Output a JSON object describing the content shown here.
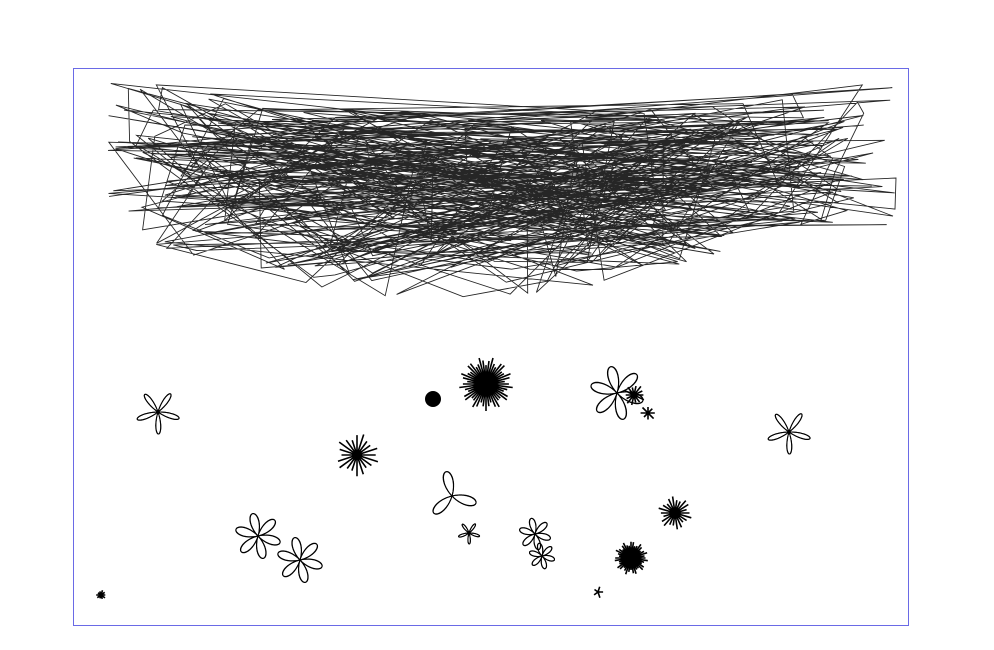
{
  "frame": {
    "border_color": "#6a6ae6"
  },
  "ink": {
    "color": "#000000"
  },
  "scribble": {
    "segment_count": 520,
    "seed": 7
  },
  "flowers": [
    {
      "kind": "looped",
      "petals": 5
    },
    {
      "kind": "dot",
      "petals": 0
    },
    {
      "kind": "burst",
      "petals": 48
    },
    {
      "kind": "looped",
      "petals": 6
    },
    {
      "kind": "burst",
      "petals": 14
    },
    {
      "kind": "burst",
      "petals": 8
    },
    {
      "kind": "looped",
      "petals": 5
    },
    {
      "kind": "burst",
      "petals": 20
    },
    {
      "kind": "looped",
      "petals": 3
    },
    {
      "kind": "looped",
      "petals": 5
    },
    {
      "kind": "looped",
      "petals": 6
    },
    {
      "kind": "looped",
      "petals": 6
    },
    {
      "kind": "looped",
      "petals": 6
    },
    {
      "kind": "looped",
      "petals": 6
    },
    {
      "kind": "burst",
      "petals": 22
    },
    {
      "kind": "burst",
      "petals": 40
    },
    {
      "kind": "burst",
      "petals": 10
    },
    {
      "kind": "burst",
      "petals": 5
    }
  ]
}
